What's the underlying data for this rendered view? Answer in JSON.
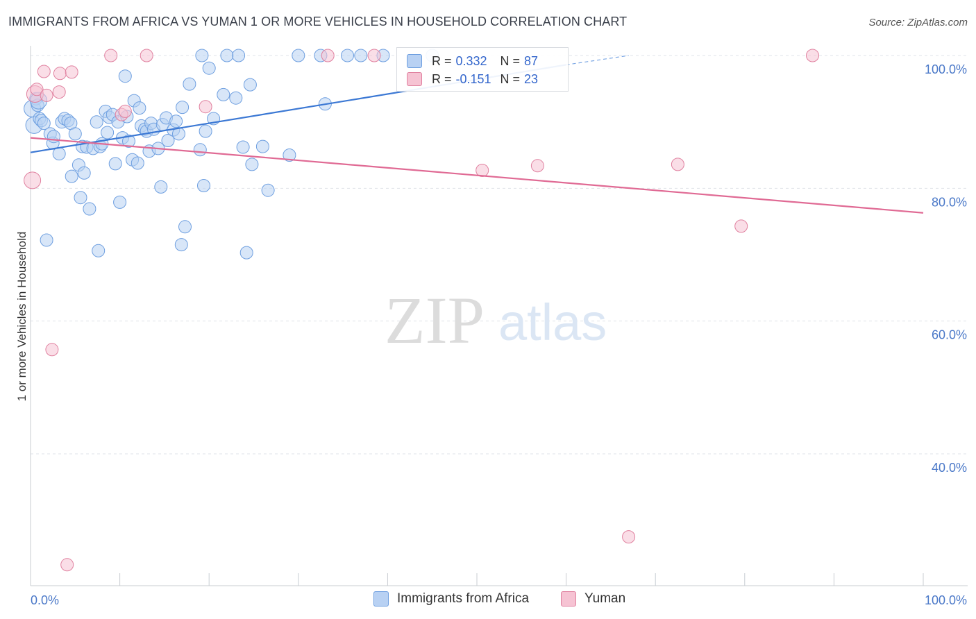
{
  "title": "IMMIGRANTS FROM AFRICA VS YUMAN 1 OR MORE VEHICLES IN HOUSEHOLD CORRELATION CHART",
  "source": "Source: ZipAtlas.com",
  "watermark": {
    "zip": "ZIP",
    "atlas": "atlas"
  },
  "legend": {
    "r_label": "R =",
    "n_label": "N =",
    "series": [
      {
        "name": "Immigrants from Africa",
        "r": "0.332",
        "n": "87",
        "color": "#6e9fe0",
        "fill": "#b8d1f3"
      },
      {
        "name": "Yuman",
        "r": "-0.151",
        "n": "23",
        "color": "#e0809f",
        "fill": "#f6c3d3"
      }
    ]
  },
  "chart_data": {
    "type": "scatter",
    "title": "IMMIGRANTS FROM AFRICA VS YUMAN 1 OR MORE VEHICLES IN HOUSEHOLD CORRELATION CHART",
    "xlabel": "",
    "ylabel": "1 or more Vehicles in Household",
    "xlim": [
      0,
      100
    ],
    "ylim": [
      20,
      102
    ],
    "x_tick_labels": [
      "0.0%",
      "100.0%"
    ],
    "y_ticks": [
      40,
      60,
      80,
      100
    ],
    "y_tick_labels": [
      "40.0%",
      "60.0%",
      "80.0%",
      "100.0%"
    ],
    "grid": true,
    "legend_position": "top-center",
    "series": [
      {
        "name": "Immigrants from Africa",
        "color": "#6e9fe0",
        "points": [
          [
            0.2,
            92.0
          ],
          [
            0.4,
            89.5
          ],
          [
            0.6,
            93.5
          ],
          [
            0.8,
            92.5
          ],
          [
            1.0,
            90.5
          ],
          [
            1.2,
            90.2
          ],
          [
            1.5,
            89.8
          ],
          [
            1.8,
            72.2
          ],
          [
            2.2,
            88.2
          ],
          [
            2.5,
            86.8
          ],
          [
            2.6,
            87.8
          ],
          [
            3.2,
            85.2
          ],
          [
            3.5,
            90.0
          ],
          [
            3.8,
            90.5
          ],
          [
            4.2,
            90.2
          ],
          [
            4.5,
            89.8
          ],
          [
            4.6,
            81.8
          ],
          [
            5.0,
            88.2
          ],
          [
            5.4,
            83.5
          ],
          [
            5.6,
            78.6
          ],
          [
            5.8,
            86.3
          ],
          [
            6.0,
            82.3
          ],
          [
            6.3,
            86.2
          ],
          [
            6.6,
            76.9
          ],
          [
            7.0,
            86.0
          ],
          [
            7.4,
            90.0
          ],
          [
            7.6,
            70.6
          ],
          [
            7.8,
            86.3
          ],
          [
            8.0,
            86.7
          ],
          [
            8.4,
            91.6
          ],
          [
            8.6,
            88.4
          ],
          [
            8.8,
            90.7
          ],
          [
            9.2,
            91.1
          ],
          [
            9.5,
            83.7
          ],
          [
            9.8,
            90.0
          ],
          [
            10.0,
            77.9
          ],
          [
            10.3,
            87.6
          ],
          [
            10.6,
            96.9
          ],
          [
            10.8,
            90.8
          ],
          [
            11.0,
            87.1
          ],
          [
            11.4,
            84.3
          ],
          [
            11.6,
            93.2
          ],
          [
            12.0,
            83.8
          ],
          [
            12.2,
            92.1
          ],
          [
            12.4,
            89.4
          ],
          [
            12.8,
            88.9
          ],
          [
            13.0,
            88.6
          ],
          [
            13.3,
            85.6
          ],
          [
            13.5,
            89.8
          ],
          [
            13.8,
            88.9
          ],
          [
            14.3,
            86.0
          ],
          [
            14.6,
            80.2
          ],
          [
            14.8,
            89.6
          ],
          [
            15.2,
            90.6
          ],
          [
            15.4,
            87.2
          ],
          [
            16.0,
            88.8
          ],
          [
            16.3,
            90.1
          ],
          [
            16.6,
            88.2
          ],
          [
            16.9,
            71.5
          ],
          [
            17.0,
            92.2
          ],
          [
            17.3,
            74.2
          ],
          [
            17.8,
            95.7
          ],
          [
            19.0,
            85.8
          ],
          [
            19.2,
            100.0
          ],
          [
            19.4,
            80.4
          ],
          [
            19.6,
            88.6
          ],
          [
            20.0,
            98.1
          ],
          [
            20.5,
            90.5
          ],
          [
            21.6,
            94.1
          ],
          [
            22.0,
            100.0
          ],
          [
            23.0,
            93.6
          ],
          [
            23.3,
            100.0
          ],
          [
            23.8,
            86.2
          ],
          [
            24.2,
            70.3
          ],
          [
            24.6,
            95.6
          ],
          [
            24.8,
            83.6
          ],
          [
            26.0,
            86.3
          ],
          [
            26.6,
            79.7
          ],
          [
            29.0,
            85.0
          ],
          [
            30.0,
            100.0
          ],
          [
            32.5,
            100.0
          ],
          [
            33.0,
            92.7
          ],
          [
            35.5,
            100.0
          ],
          [
            37.0,
            100.0
          ],
          [
            39.5,
            100.0
          ],
          [
            45.0,
            100.0
          ],
          [
            0.9,
            93.2
          ]
        ]
      },
      {
        "name": "Yuman",
        "color": "#e0809f",
        "points": [
          [
            0.2,
            81.2
          ],
          [
            0.5,
            94.2
          ],
          [
            0.7,
            94.9
          ],
          [
            1.5,
            97.6
          ],
          [
            1.8,
            94.0
          ],
          [
            2.4,
            55.7
          ],
          [
            3.2,
            94.5
          ],
          [
            3.3,
            97.3
          ],
          [
            4.1,
            23.3
          ],
          [
            4.6,
            97.5
          ],
          [
            9.0,
            100.0
          ],
          [
            10.2,
            91.1
          ],
          [
            10.6,
            91.6
          ],
          [
            13.0,
            100.0
          ],
          [
            19.6,
            92.3
          ],
          [
            33.3,
            100.0
          ],
          [
            38.5,
            100.0
          ],
          [
            50.6,
            82.7
          ],
          [
            56.8,
            83.4
          ],
          [
            67.0,
            27.5
          ],
          [
            72.5,
            83.6
          ],
          [
            79.6,
            74.3
          ],
          [
            87.6,
            100.0
          ]
        ]
      }
    ],
    "trendlines": [
      {
        "series": "Immigrants from Africa",
        "x0": 0,
        "y0": 85.4,
        "x1": 60,
        "y1": 98.6,
        "dashed_from": 60,
        "dashed_to": 67,
        "dashed_y_end": 100.0
      },
      {
        "series": "Yuman",
        "x0": 0,
        "y0": 87.6,
        "x1": 100,
        "y1": 76.3
      }
    ]
  }
}
